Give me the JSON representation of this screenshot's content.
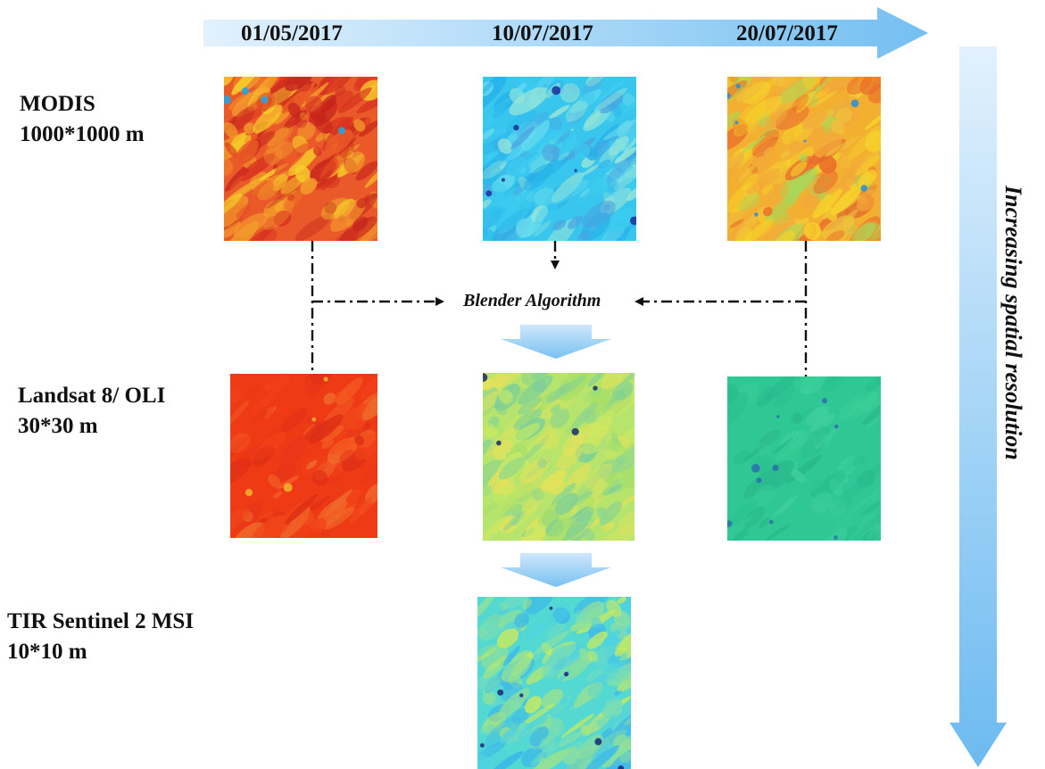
{
  "timeline": {
    "dates": [
      "01/05/2017",
      "10/07/2017",
      "20/07/2017"
    ],
    "colors": {
      "start": "#dceefc",
      "end": "#7cc3f2"
    }
  },
  "rows": [
    {
      "name": "MODIS",
      "resolution": "1000*1000 m"
    },
    {
      "name": "Landsat 8/ OLI",
      "resolution": "30*30 m"
    },
    {
      "name": "TIR Sentinel 2 MSI",
      "resolution": "10*10 m"
    }
  ],
  "algorithm": {
    "label": "Blender Algorithm"
  },
  "axis": {
    "label": "Increasing spatial resolution"
  },
  "tiles": [
    {
      "id": "modis-01-05-2017",
      "palette": "hot",
      "base": "#e9592a"
    },
    {
      "id": "modis-10-07-2017",
      "palette": "cool",
      "base": "#39c6ee"
    },
    {
      "id": "modis-20-07-2017",
      "palette": "warm-mix",
      "base": "#f3b030"
    },
    {
      "id": "landsat-01-05-2017",
      "palette": "red",
      "base": "#ef3a16"
    },
    {
      "id": "landsat-10-07-2017",
      "palette": "green-yellow",
      "base": "#b6e46c"
    },
    {
      "id": "landsat-20-07-2017",
      "palette": "teal",
      "base": "#2fc894"
    },
    {
      "id": "sentinel-10-07-2017",
      "palette": "cyan-mix",
      "base": "#54d8d2"
    }
  ]
}
